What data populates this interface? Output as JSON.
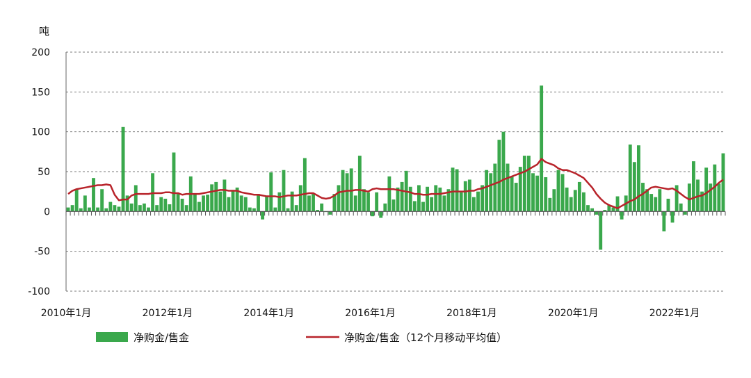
{
  "chart_data": {
    "type": "bar",
    "y_unit": "吨",
    "ylim": [
      -100,
      200
    ],
    "y_ticks": [
      200,
      150,
      100,
      50,
      0,
      -50,
      -100
    ],
    "grid": true,
    "legend_position": "bottom",
    "x_tick_labels": [
      "2010年1月",
      "2012年1月",
      "2014年1月",
      "2016年1月",
      "2018年1月",
      "2020年1月",
      "2022年1月"
    ],
    "months": [
      "2010-01",
      "2010-02",
      "2010-03",
      "2010-04",
      "2010-05",
      "2010-06",
      "2010-07",
      "2010-08",
      "2010-09",
      "2010-10",
      "2010-11",
      "2010-12",
      "2011-01",
      "2011-02",
      "2011-03",
      "2011-04",
      "2011-05",
      "2011-06",
      "2011-07",
      "2011-08",
      "2011-09",
      "2011-10",
      "2011-11",
      "2011-12",
      "2012-01",
      "2012-02",
      "2012-03",
      "2012-04",
      "2012-05",
      "2012-06",
      "2012-07",
      "2012-08",
      "2012-09",
      "2012-10",
      "2012-11",
      "2012-12",
      "2013-01",
      "2013-02",
      "2013-03",
      "2013-04",
      "2013-05",
      "2013-06",
      "2013-07",
      "2013-08",
      "2013-09",
      "2013-10",
      "2013-11",
      "2013-12",
      "2014-01",
      "2014-02",
      "2014-03",
      "2014-04",
      "2014-05",
      "2014-06",
      "2014-07",
      "2014-08",
      "2014-09",
      "2014-10",
      "2014-11",
      "2014-12",
      "2015-01",
      "2015-02",
      "2015-03",
      "2015-04",
      "2015-05",
      "2015-06",
      "2015-07",
      "2015-08",
      "2015-09",
      "2015-10",
      "2015-11",
      "2015-12",
      "2016-01",
      "2016-02",
      "2016-03",
      "2016-04",
      "2016-05",
      "2016-06",
      "2016-07",
      "2016-08",
      "2016-09",
      "2016-10",
      "2016-11",
      "2016-12",
      "2017-01",
      "2017-02",
      "2017-03",
      "2017-04",
      "2017-05",
      "2017-06",
      "2017-07",
      "2017-08",
      "2017-09",
      "2017-10",
      "2017-11",
      "2017-12",
      "2018-01",
      "2018-02",
      "2018-03",
      "2018-04",
      "2018-05",
      "2018-06",
      "2018-07",
      "2018-08",
      "2018-09",
      "2018-10",
      "2018-11",
      "2018-12",
      "2019-01",
      "2019-02",
      "2019-03",
      "2019-04",
      "2019-05",
      "2019-06",
      "2019-07",
      "2019-08",
      "2019-09",
      "2019-10",
      "2019-11",
      "2019-12",
      "2020-01",
      "2020-02",
      "2020-03",
      "2020-04",
      "2020-05",
      "2020-06",
      "2020-07",
      "2020-08",
      "2020-09",
      "2020-10",
      "2020-11",
      "2020-12",
      "2021-01",
      "2021-02",
      "2021-03",
      "2021-04",
      "2021-05",
      "2021-06",
      "2021-07",
      "2021-08",
      "2021-09",
      "2021-10",
      "2021-11",
      "2021-12",
      "2022-01",
      "2022-02",
      "2022-03",
      "2022-04",
      "2022-05",
      "2022-06",
      "2022-07",
      "2022-08",
      "2022-09",
      "2022-10",
      "2022-11",
      "2022-12"
    ],
    "series": [
      {
        "name": "净购金/售金",
        "type": "bar",
        "color": "#3aa84c",
        "values": [
          5,
          8,
          28,
          4,
          20,
          5,
          42,
          5,
          28,
          4,
          12,
          8,
          6,
          106,
          20,
          10,
          33,
          8,
          10,
          5,
          48,
          8,
          18,
          16,
          9,
          74,
          22,
          16,
          8,
          44,
          22,
          12,
          20,
          21,
          34,
          37,
          25,
          40,
          18,
          27,
          30,
          20,
          18,
          5,
          4,
          22,
          -10,
          20,
          49,
          5,
          24,
          52,
          4,
          25,
          8,
          33,
          67,
          20,
          22,
          2,
          10,
          0,
          -4,
          22,
          33,
          52,
          48,
          54,
          20,
          70,
          28,
          24,
          -6,
          24,
          -8,
          10,
          44,
          15,
          30,
          37,
          51,
          31,
          13,
          33,
          12,
          31,
          18,
          33,
          30,
          20,
          28,
          55,
          53,
          24,
          38,
          40,
          18,
          25,
          33,
          52,
          48,
          60,
          90,
          100,
          60,
          44,
          36,
          56,
          70,
          70,
          48,
          45,
          158,
          43,
          17,
          28,
          52,
          47,
          30,
          18,
          27,
          37,
          24,
          8,
          4,
          -4,
          -48,
          2,
          8,
          5,
          19,
          -10,
          20,
          84,
          62,
          83,
          36,
          28,
          22,
          18,
          28,
          -25,
          16,
          -14,
          33,
          10,
          -4,
          35,
          63,
          40,
          25,
          55,
          35,
          59,
          35,
          73
        ]
      },
      {
        "name": "净购金/售金（12个月移动平均值）",
        "type": "line",
        "color": "#b8232a",
        "values": [
          22,
          26,
          28,
          29,
          30,
          31,
          32,
          33,
          33,
          34,
          33,
          21,
          14,
          15,
          15,
          20,
          22,
          22,
          22,
          22,
          23,
          23,
          23,
          24,
          24,
          23,
          23,
          21,
          22,
          22,
          22,
          22,
          23,
          24,
          25,
          26,
          27,
          27,
          26,
          26,
          26,
          24,
          23,
          22,
          21,
          21,
          20,
          19,
          19,
          19,
          18,
          19,
          20,
          20,
          20,
          21,
          22,
          23,
          23,
          20,
          17,
          16,
          17,
          20,
          24,
          25,
          26,
          26,
          27,
          27,
          26,
          25,
          28,
          29,
          28,
          28,
          28,
          28,
          27,
          26,
          25,
          24,
          22,
          22,
          21,
          21,
          22,
          22,
          22,
          23,
          24,
          25,
          25,
          25,
          25,
          26,
          26,
          28,
          29,
          31,
          33,
          35,
          37,
          40,
          42,
          44,
          46,
          48,
          50,
          53,
          56,
          59,
          66,
          62,
          60,
          58,
          54,
          52,
          52,
          50,
          48,
          45,
          42,
          36,
          30,
          22,
          16,
          11,
          8,
          6,
          4,
          7,
          10,
          13,
          15,
          19,
          22,
          26,
          30,
          31,
          30,
          29,
          28,
          29,
          26,
          22,
          18,
          15,
          17,
          19,
          20,
          23,
          27,
          31,
          36,
          40
        ]
      }
    ]
  }
}
